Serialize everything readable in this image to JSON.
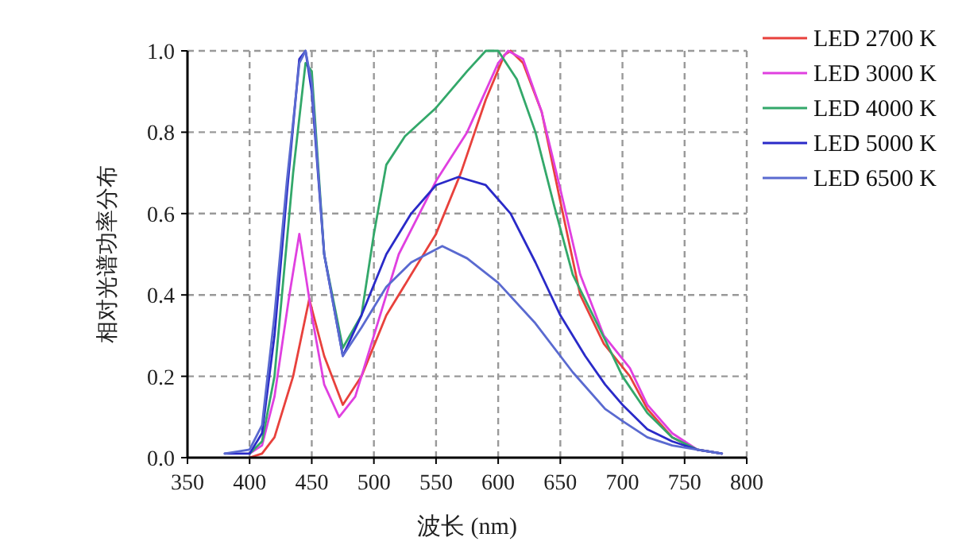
{
  "chart_data": {
    "type": "line",
    "xlabel": "波长 (nm)",
    "ylabel": "相对光谱功率分布",
    "xlim": [
      350,
      800
    ],
    "ylim": [
      0,
      1
    ],
    "xticks": [
      350,
      400,
      450,
      500,
      550,
      600,
      650,
      700,
      750,
      800
    ],
    "yticks": [
      {
        "value": 0,
        "label": "0.0"
      },
      {
        "value": 0.2,
        "label": "0.2"
      },
      {
        "value": 0.4,
        "label": "0.4"
      },
      {
        "value": 0.6,
        "label": "0.6"
      },
      {
        "value": 0.8,
        "label": "0.8"
      },
      {
        "value": 1,
        "label": "1.0"
      }
    ],
    "grid": true,
    "legend": "top right",
    "marker": "none",
    "line_style": "solid",
    "series": [
      {
        "name": "LED 2700 K",
        "color": "#e8413c",
        "x": [
          400,
          410,
          420,
          435,
          448,
          460,
          475,
          490,
          510,
          530,
          550,
          570,
          590,
          605,
          610,
          620,
          635,
          650,
          666,
          685,
          706,
          720,
          740,
          760,
          780
        ],
        "values": [
          0.0,
          0.01,
          0.05,
          0.2,
          0.39,
          0.25,
          0.13,
          0.2,
          0.35,
          0.45,
          0.55,
          0.7,
          0.88,
          0.99,
          1.0,
          0.97,
          0.85,
          0.63,
          0.4,
          0.28,
          0.2,
          0.12,
          0.05,
          0.02,
          0.01
        ]
      },
      {
        "name": "LED 3000 K",
        "color": "#e040e0",
        "x": [
          400,
          410,
          420,
          432,
          440,
          450,
          460,
          472,
          485,
          500,
          520,
          550,
          575,
          600,
          608,
          620,
          635,
          650,
          666,
          685,
          706,
          720,
          740,
          760,
          780
        ],
        "values": [
          0.01,
          0.03,
          0.15,
          0.4,
          0.55,
          0.35,
          0.18,
          0.1,
          0.15,
          0.3,
          0.5,
          0.68,
          0.8,
          0.97,
          1.0,
          0.98,
          0.85,
          0.66,
          0.45,
          0.3,
          0.22,
          0.13,
          0.06,
          0.02,
          0.01
        ]
      },
      {
        "name": "LED 4000 K",
        "color": "#33a86a",
        "x": [
          400,
          410,
          420,
          435,
          445,
          450,
          460,
          475,
          490,
          500,
          510,
          525,
          550,
          575,
          590,
          600,
          615,
          630,
          645,
          660,
          686,
          700,
          720,
          740,
          760,
          780
        ],
        "values": [
          0.01,
          0.04,
          0.2,
          0.7,
          0.97,
          0.95,
          0.5,
          0.27,
          0.35,
          0.55,
          0.72,
          0.79,
          0.86,
          0.95,
          1.0,
          1.0,
          0.93,
          0.8,
          0.62,
          0.45,
          0.29,
          0.2,
          0.11,
          0.05,
          0.02,
          0.01
        ]
      },
      {
        "name": "LED 5000 K",
        "color": "#2a2ac8",
        "x": [
          380,
          400,
          410,
          420,
          430,
          440,
          445,
          450,
          460,
          475,
          490,
          510,
          530,
          550,
          568,
          590,
          610,
          630,
          650,
          670,
          686,
          700,
          720,
          740,
          760,
          780
        ],
        "values": [
          0.01,
          0.01,
          0.06,
          0.3,
          0.65,
          0.98,
          1.0,
          0.9,
          0.5,
          0.25,
          0.35,
          0.5,
          0.6,
          0.67,
          0.69,
          0.67,
          0.6,
          0.48,
          0.35,
          0.25,
          0.18,
          0.13,
          0.07,
          0.04,
          0.02,
          0.01
        ]
      },
      {
        "name": "LED 6500 K",
        "color": "#5a6ad0",
        "x": [
          380,
          400,
          410,
          420,
          430,
          440,
          445,
          450,
          460,
          475,
          490,
          510,
          530,
          555,
          575,
          600,
          630,
          660,
          686,
          700,
          720,
          740,
          760,
          780
        ],
        "values": [
          0.01,
          0.02,
          0.08,
          0.35,
          0.68,
          0.97,
          1.0,
          0.92,
          0.5,
          0.25,
          0.32,
          0.42,
          0.48,
          0.52,
          0.49,
          0.43,
          0.33,
          0.21,
          0.12,
          0.09,
          0.05,
          0.03,
          0.02,
          0.01
        ]
      }
    ]
  }
}
